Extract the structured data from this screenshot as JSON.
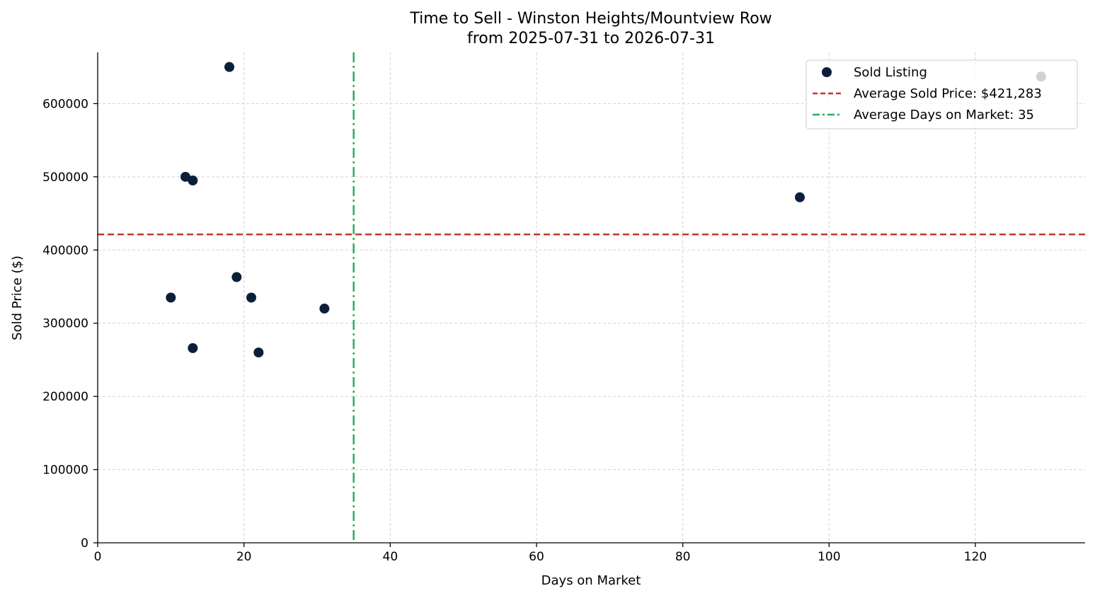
{
  "chart_data": {
    "type": "scatter",
    "title": "Time to Sell - Winston Heights/Mountview Row",
    "subtitle": "from 2025-07-31 to 2026-07-31",
    "xlabel": "Days on Market",
    "ylabel": "Sold Price ($)",
    "xlim": [
      0,
      135
    ],
    "ylim": [
      0,
      670000
    ],
    "x_ticks": [
      0,
      20,
      40,
      60,
      80,
      100,
      120
    ],
    "y_ticks": [
      0,
      100000,
      200000,
      300000,
      400000,
      500000,
      600000
    ],
    "grid": true,
    "legend_position": "top-right",
    "series": [
      {
        "name": "Sold Listing",
        "color": "#0b1f3a",
        "points": [
          {
            "x": 10,
            "y": 335000
          },
          {
            "x": 12,
            "y": 500000
          },
          {
            "x": 13,
            "y": 495000
          },
          {
            "x": 13,
            "y": 266000
          },
          {
            "x": 18,
            "y": 650000
          },
          {
            "x": 19,
            "y": 363000
          },
          {
            "x": 21,
            "y": 335000
          },
          {
            "x": 22,
            "y": 260000
          },
          {
            "x": 31,
            "y": 320000
          },
          {
            "x": 96,
            "y": 472000
          },
          {
            "x": 129,
            "y": 637000
          }
        ]
      }
    ],
    "reference_lines": [
      {
        "name": "Average Sold Price: $421,283",
        "axis": "y",
        "value": 421283,
        "color": "#c0392b",
        "style": "dashed"
      },
      {
        "name": "Average Days on Market: 35",
        "axis": "x",
        "value": 35,
        "color": "#27ae60",
        "style": "dashdot"
      }
    ]
  }
}
